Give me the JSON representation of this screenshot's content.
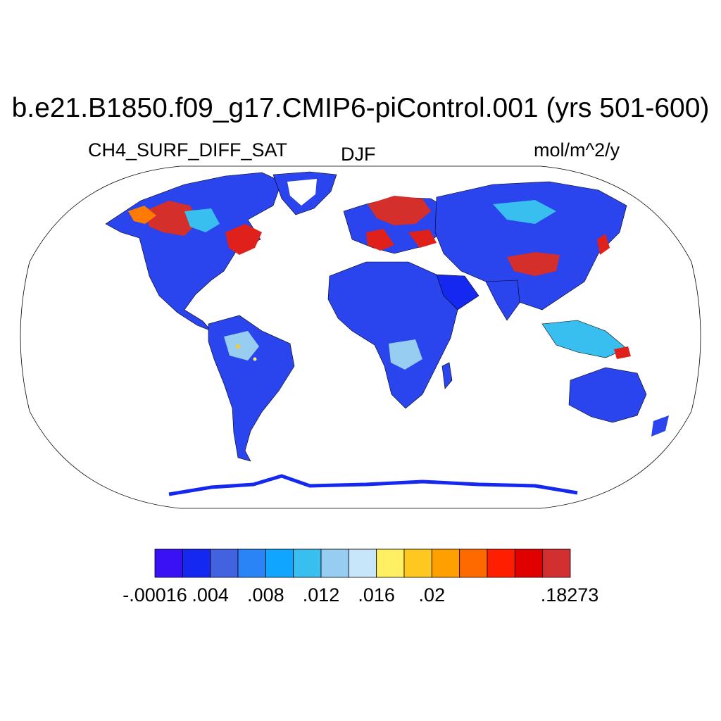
{
  "title": "b.e21.B1850.f09_g17.CMIP6-piControl.001 (yrs 501-600)",
  "variable": "CH4_SURF_DIFF_SAT",
  "season": "DJF",
  "units": "mol/m^2/y",
  "projection": "Robinson",
  "colorbar": {
    "colors": [
      "#3a10f5",
      "#1428f0",
      "#4262e0",
      "#2a84f5",
      "#10a6ff",
      "#38bff0",
      "#96cdf0",
      "#c8e6fa",
      "#fff063",
      "#ffc820",
      "#ff9f00",
      "#ff6a00",
      "#ff1e00",
      "#e00000",
      "#d23030"
    ],
    "labels": [
      "-.00016",
      ".004",
      ".008",
      ".012",
      ".016",
      ".02",
      ".18273"
    ]
  },
  "colors": {
    "background": "#ffffff",
    "ocean": "#ffffff",
    "outline": "#000000"
  }
}
